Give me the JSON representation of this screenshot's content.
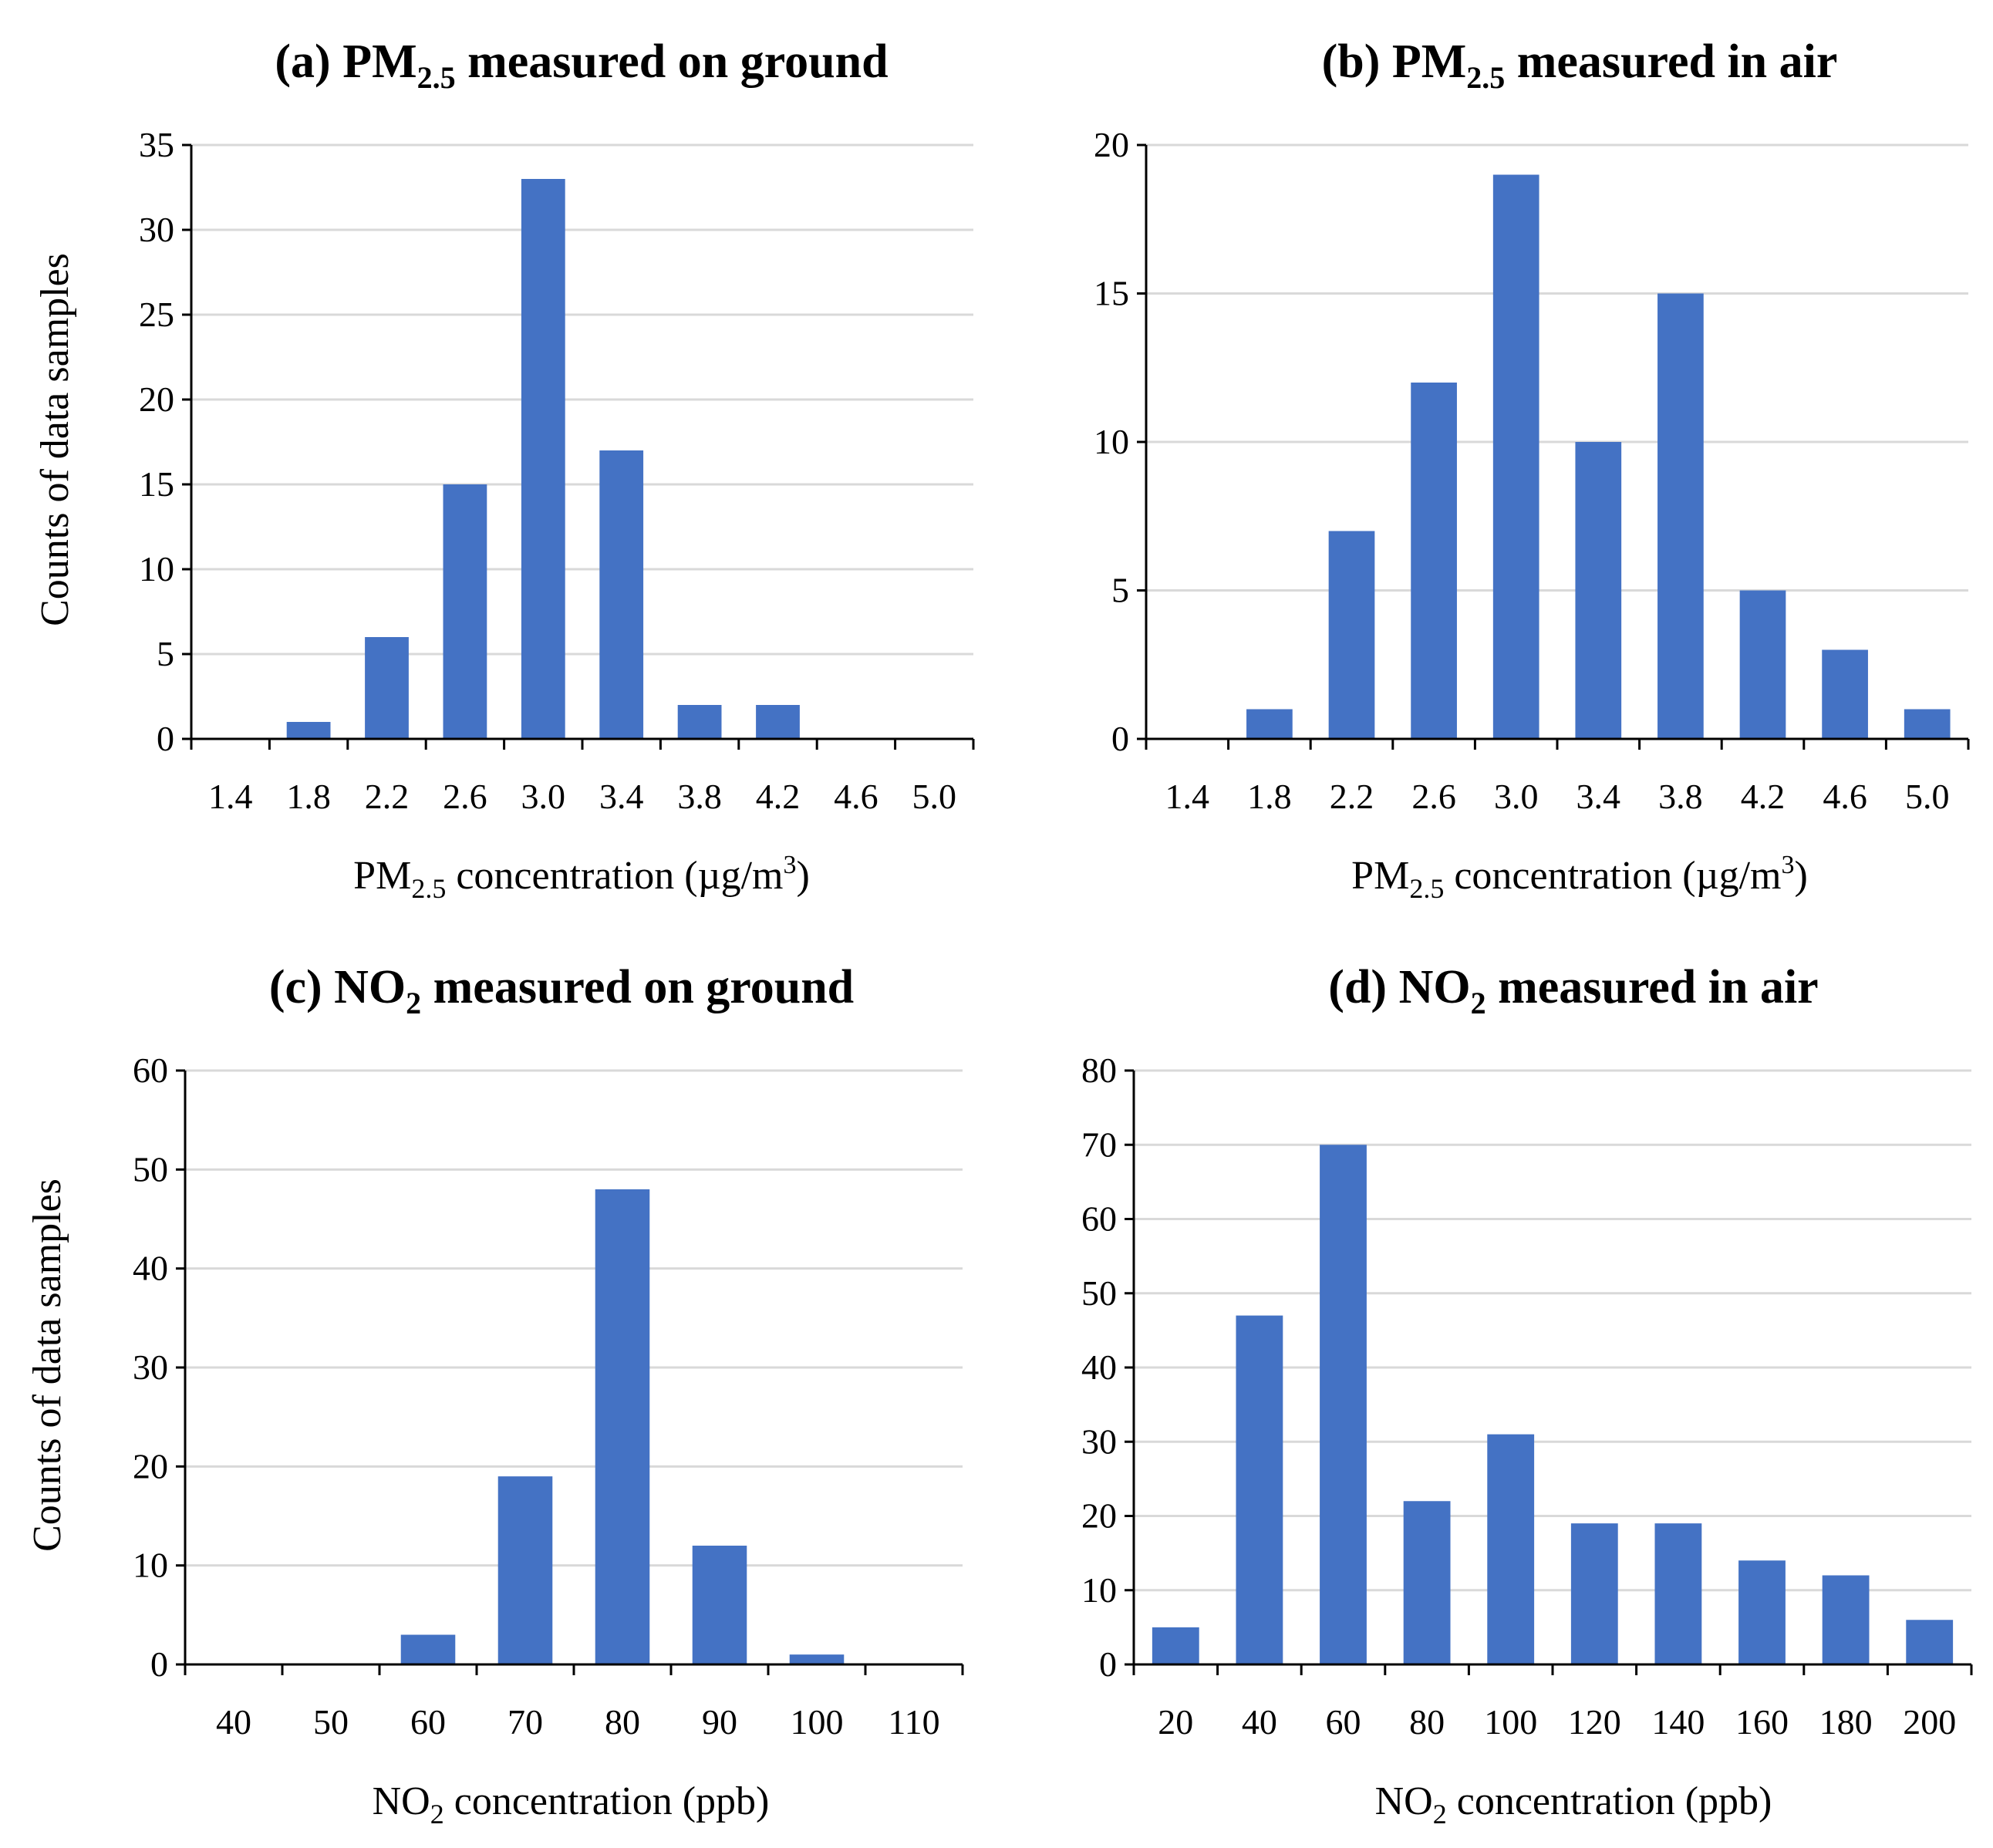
{
  "colors": {
    "bar": "#4472C4",
    "grid": "#d9d9d9",
    "axis": "#000000"
  },
  "chart_data": [
    {
      "id": "a",
      "type": "bar",
      "title": {
        "prefix": "(a) PM",
        "sub": "2.5",
        "suffix": " measured on ground"
      },
      "ylabel": "Counts of data samples",
      "xlabel": {
        "prefix": "PM",
        "sub": "2.5",
        "suffix": " concentration (µg/m",
        "sup": "3",
        "end": ")"
      },
      "categories": [
        "1.4",
        "1.8",
        "2.2",
        "2.6",
        "3.0",
        "3.4",
        "3.8",
        "4.2",
        "4.6",
        "5.0"
      ],
      "values": [
        0,
        1,
        6,
        15,
        33,
        17,
        2,
        2,
        0,
        0
      ],
      "ylim": [
        0,
        35
      ],
      "yticks": [
        0,
        5,
        10,
        15,
        20,
        25,
        30,
        35
      ],
      "grid": true
    },
    {
      "id": "b",
      "type": "bar",
      "title": {
        "prefix": "(b) PM",
        "sub": "2.5",
        "suffix": " measured in air"
      },
      "ylabel": "",
      "xlabel": {
        "prefix": "PM",
        "sub": "2.5",
        "suffix": " concentration (µg/m",
        "sup": "3",
        "end": ")"
      },
      "categories": [
        "1.4",
        "1.8",
        "2.2",
        "2.6",
        "3.0",
        "3.4",
        "3.8",
        "4.2",
        "4.6",
        "5.0"
      ],
      "values": [
        0,
        1,
        7,
        12,
        19,
        10,
        15,
        5,
        3,
        1
      ],
      "ylim": [
        0,
        20
      ],
      "yticks": [
        0,
        5,
        10,
        15,
        20
      ],
      "grid": true
    },
    {
      "id": "c",
      "type": "bar",
      "title": {
        "prefix": "(c) NO",
        "sub": "2",
        "suffix": " measured on ground"
      },
      "ylabel": "Counts of data samples",
      "xlabel": {
        "prefix": "NO",
        "sub": "2",
        "suffix": " concentration (ppb)",
        "sup": "",
        "end": ""
      },
      "categories": [
        "40",
        "50",
        "60",
        "70",
        "80",
        "90",
        "100",
        "110"
      ],
      "values": [
        0,
        0,
        3,
        19,
        48,
        12,
        1,
        0
      ],
      "ylim": [
        0,
        60
      ],
      "yticks": [
        0,
        10,
        20,
        30,
        40,
        50,
        60
      ],
      "grid": true
    },
    {
      "id": "d",
      "type": "bar",
      "title": {
        "prefix": "(d) NO",
        "sub": "2",
        "suffix": " measured in air"
      },
      "ylabel": "",
      "xlabel": {
        "prefix": "NO",
        "sub": "2",
        "suffix": " concentration (ppb)",
        "sup": "",
        "end": ""
      },
      "categories": [
        "20",
        "40",
        "60",
        "80",
        "100",
        "120",
        "140",
        "160",
        "180",
        "200"
      ],
      "values": [
        5,
        47,
        70,
        22,
        31,
        19,
        19,
        14,
        12,
        6
      ],
      "ylim": [
        0,
        80
      ],
      "yticks": [
        0,
        10,
        20,
        30,
        40,
        50,
        60,
        70,
        80
      ],
      "grid": true
    }
  ]
}
